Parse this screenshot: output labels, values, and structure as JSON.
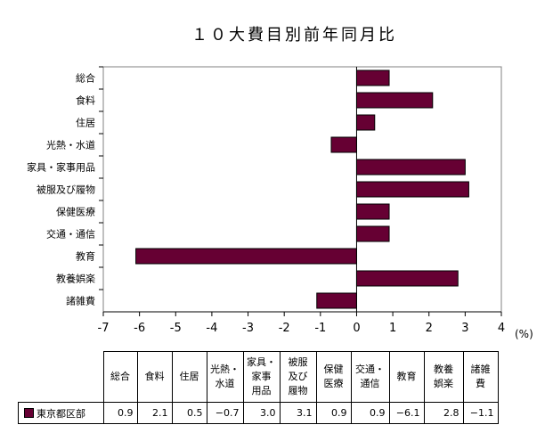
{
  "chart_data": {
    "type": "bar",
    "orientation": "horizontal",
    "title": "１０大費目別前年同月比",
    "categories": [
      "総合",
      "食料",
      "住居",
      "光熱・水道",
      "家具・家事用品",
      "被服及び履物",
      "保健医療",
      "交通・通信",
      "教育",
      "教養娯楽",
      "諸雑費"
    ],
    "series": [
      {
        "name": "東京都区部",
        "values": [
          0.9,
          2.1,
          0.5,
          -0.7,
          3.0,
          3.1,
          0.9,
          0.9,
          -6.1,
          2.8,
          -1.1
        ],
        "color": "#660033"
      }
    ],
    "xlim": [
      -7,
      4
    ],
    "xticks": [
      "-7",
      "-6",
      "-5",
      "-4",
      "-3",
      "-2",
      "-1",
      "0",
      "1",
      "2",
      "3",
      "4"
    ],
    "unit_label": "(%)",
    "grid": false,
    "legend": "table-below",
    "table": {
      "headers": [
        "総合",
        "食料",
        "住居",
        "光熱・\n水道",
        "家具・\n家事\n用品",
        "被服\n及び\n履物",
        "保健\n医療",
        "交通・\n通信",
        "教育",
        "教養\n娯楽",
        "諸雑\n費"
      ],
      "values": [
        "0.9",
        "2.1",
        "0.5",
        "−0.7",
        "3.0",
        "3.1",
        "0.9",
        "0.9",
        "−6.1",
        "2.8",
        "−1.1"
      ]
    }
  }
}
